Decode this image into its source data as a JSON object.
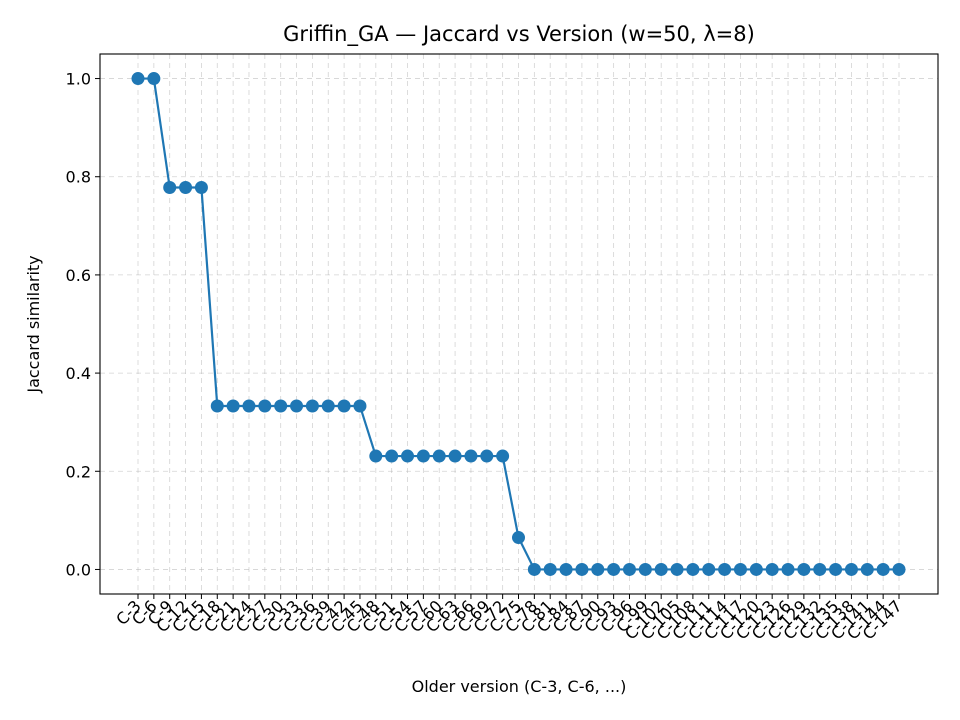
{
  "chart_data": {
    "type": "line",
    "title": "Griffin_GA — Jaccard vs Version (w=50, λ=8)",
    "xlabel": "Older version (C-3, C-6, ...)",
    "ylabel": "Jaccard similarity",
    "categories": [
      "C-3",
      "C-6",
      "C-9",
      "C-12",
      "C-15",
      "C-18",
      "C-21",
      "C-24",
      "C-27",
      "C-30",
      "C-33",
      "C-36",
      "C-39",
      "C-42",
      "C-45",
      "C-48",
      "C-51",
      "C-54",
      "C-57",
      "C-60",
      "C-63",
      "C-66",
      "C-69",
      "C-72",
      "C-75",
      "C-78",
      "C-81",
      "C-84",
      "C-87",
      "C-90",
      "C-93",
      "C-96",
      "C-99",
      "C-102",
      "C-105",
      "C-108",
      "C-111",
      "C-114",
      "C-117",
      "C-120",
      "C-123",
      "C-126",
      "C-129",
      "C-132",
      "C-135",
      "C-138",
      "C-141",
      "C-144",
      "C-147"
    ],
    "series": [
      {
        "color": "#1f77b4",
        "values": [
          1.0,
          1.0,
          0.778,
          0.778,
          0.778,
          0.333,
          0.333,
          0.333,
          0.333,
          0.333,
          0.333,
          0.333,
          0.333,
          0.333,
          0.333,
          0.231,
          0.231,
          0.231,
          0.231,
          0.231,
          0.231,
          0.231,
          0.231,
          0.231,
          0.065,
          0.0,
          0.0,
          0.0,
          0.0,
          0.0,
          0.0,
          0.0,
          0.0,
          0.0,
          0.0,
          0.0,
          0.0,
          0.0,
          0.0,
          0.0,
          0.0,
          0.0,
          0.0,
          0.0,
          0.0,
          0.0,
          0.0,
          0.0,
          0.0
        ]
      }
    ],
    "ylim": [
      -0.05,
      1.05
    ],
    "yticks": [
      "0.0",
      "0.2",
      "0.4",
      "0.6",
      "0.8",
      "1.0"
    ],
    "grid": true,
    "legend": "none"
  }
}
